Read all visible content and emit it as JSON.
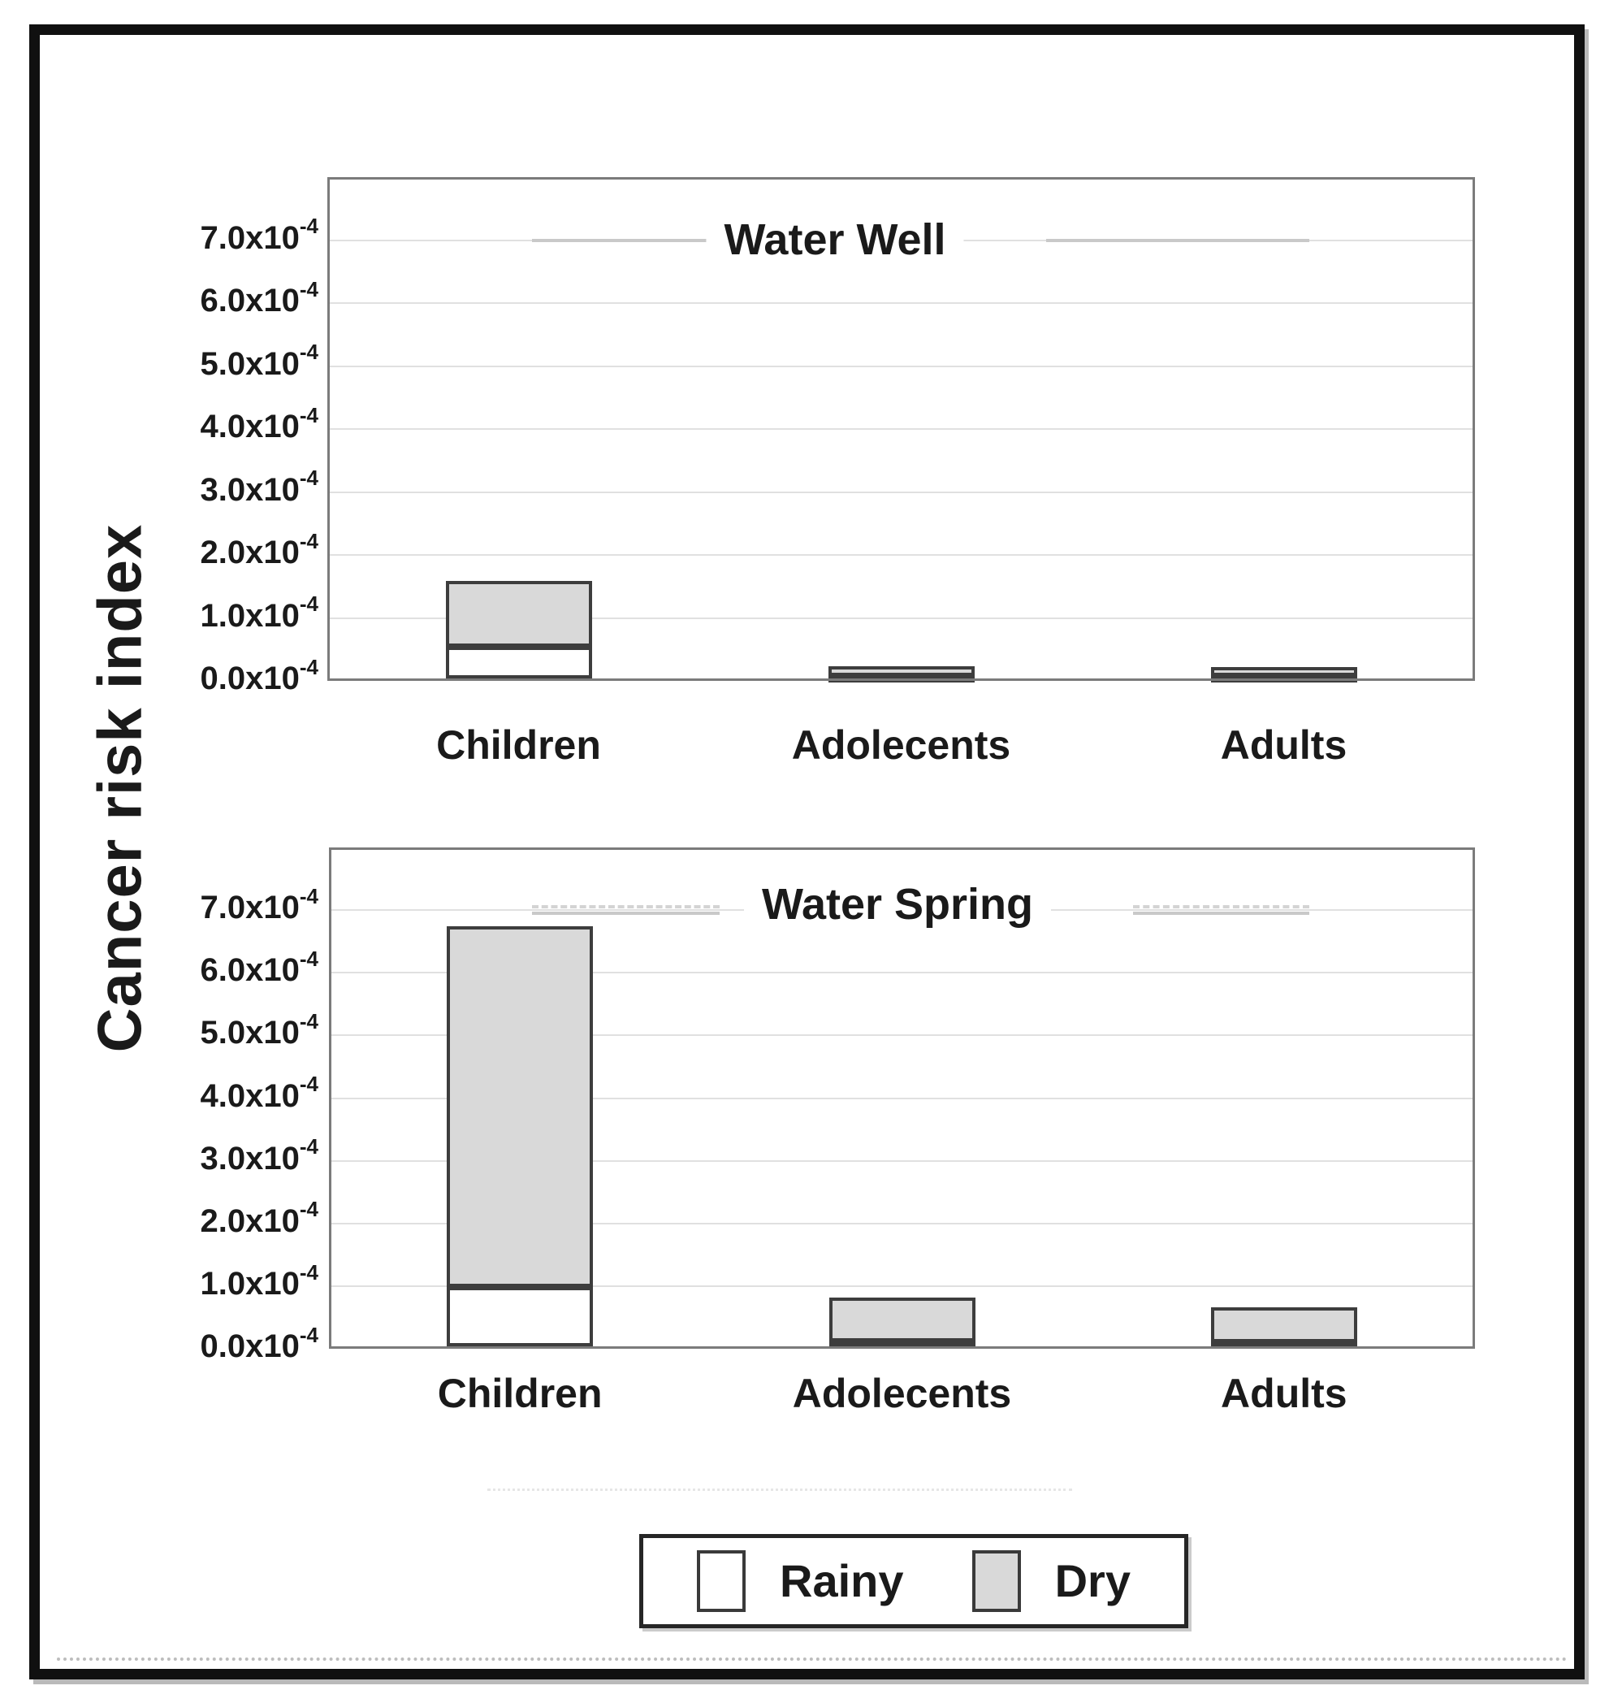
{
  "figure": {
    "y_axis_label": "Cancer risk index"
  },
  "chart_data": [
    {
      "type": "bar",
      "stacked": true,
      "title": "Water Well",
      "categories": [
        "Children",
        "Adolecents",
        "Adults"
      ],
      "series": [
        {
          "name": "Rainy",
          "color": "#ffffff",
          "values": [
            0.5,
            0.04,
            0.04
          ]
        },
        {
          "name": "Dry",
          "color": "#d9d9d9",
          "values": [
            1.05,
            0.16,
            0.14
          ]
        }
      ],
      "value_unit": "x10-4",
      "y_ticks": [
        "0.0",
        "1.0",
        "2.0",
        "3.0",
        "4.0",
        "5.0",
        "6.0",
        "7.0"
      ],
      "y_tick_base": "x10",
      "y_tick_exponent": "-4",
      "ylim": [
        0,
        8
      ],
      "grid": true,
      "legend_position": "below-figure"
    },
    {
      "type": "bar",
      "stacked": true,
      "title": "Water Spring",
      "categories": [
        "Children",
        "Adolecents",
        "Adults"
      ],
      "series": [
        {
          "name": "Rainy",
          "color": "#ffffff",
          "values": [
            0.95,
            0.08,
            0.06
          ]
        },
        {
          "name": "Dry",
          "color": "#d9d9d9",
          "values": [
            5.75,
            0.7,
            0.56
          ]
        }
      ],
      "value_unit": "x10-4",
      "y_ticks": [
        "0.0",
        "1.0",
        "2.0",
        "3.0",
        "4.0",
        "5.0",
        "6.0",
        "7.0"
      ],
      "y_tick_base": "x10",
      "y_tick_exponent": "-4",
      "ylim": [
        0,
        8
      ],
      "grid": true,
      "legend_position": "below-figure"
    }
  ],
  "legend": {
    "items": [
      {
        "label": "Rainy",
        "swatch_color": "#ffffff"
      },
      {
        "label": "Dry",
        "swatch_color": "#d9d9d9"
      }
    ]
  },
  "colors": {
    "bar_border": "#3d3d3d",
    "plot_border": "#7b7b7b",
    "gridline": "#e0e0e0",
    "frame": "#101010",
    "text": "#1a1a1a"
  }
}
